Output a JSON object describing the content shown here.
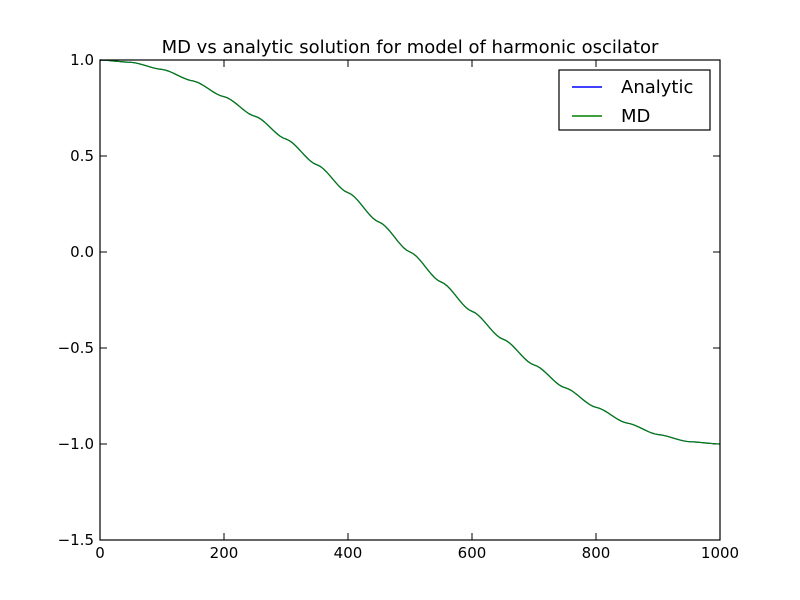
{
  "chart_data": {
    "type": "line",
    "title": "MD vs analytic solution for model of harmonic oscilator",
    "xlabel": "",
    "ylabel": "",
    "xlim": [
      0,
      1000
    ],
    "ylim": [
      -1.5,
      1.0
    ],
    "x_ticks": [
      0,
      200,
      400,
      600,
      800,
      1000
    ],
    "x_tick_labels": [
      "0",
      "200",
      "400",
      "600",
      "800",
      "1000"
    ],
    "y_ticks": [
      1.0,
      0.5,
      0.0,
      -0.5,
      -1.0,
      -1.5
    ],
    "y_tick_labels": [
      "1.0",
      "0.5",
      "0.0",
      "−0.5",
      "−1.0",
      "−1.5"
    ],
    "grid": false,
    "legend_position": "top-right",
    "x": [
      0,
      50,
      100,
      150,
      200,
      250,
      300,
      350,
      400,
      450,
      500,
      550,
      600,
      650,
      700,
      750,
      800,
      850,
      900,
      950,
      1000
    ],
    "series": [
      {
        "name": "Analytic",
        "color": "#0000ff",
        "values": [
          1.0,
          0.988,
          0.951,
          0.891,
          0.809,
          0.707,
          0.588,
          0.454,
          0.309,
          0.156,
          0.0,
          -0.156,
          -0.309,
          -0.454,
          -0.588,
          -0.707,
          -0.809,
          -0.891,
          -0.951,
          -0.988,
          -1.0
        ]
      },
      {
        "name": "MD",
        "color": "#008000",
        "values": [
          1.0,
          0.988,
          0.951,
          0.891,
          0.809,
          0.707,
          0.588,
          0.454,
          0.309,
          0.156,
          0.0,
          -0.156,
          -0.309,
          -0.454,
          -0.588,
          -0.707,
          -0.809,
          -0.891,
          -0.951,
          -0.988,
          -1.0
        ]
      }
    ]
  }
}
